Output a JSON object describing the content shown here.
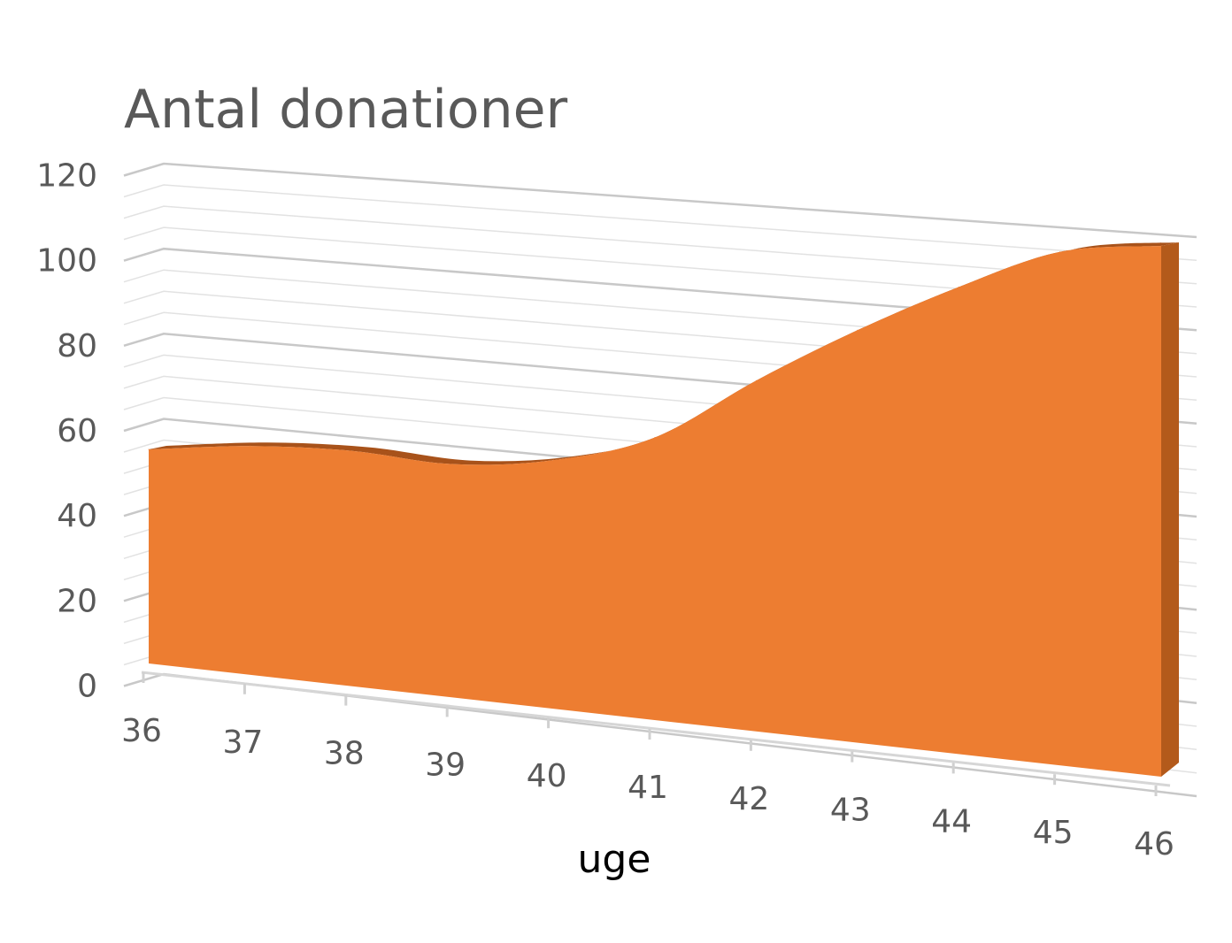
{
  "chart_data": {
    "type": "area",
    "title": "Antal donationer",
    "xlabel": "uge",
    "ylabel": "",
    "categories": [
      "36",
      "37",
      "38",
      "39",
      "40",
      "41",
      "42",
      "43",
      "44",
      "45",
      "46"
    ],
    "series": [
      {
        "values": [
          54,
          56,
          56,
          54,
          56,
          62,
          75,
          86,
          95,
          102,
          103
        ]
      }
    ],
    "ylim": [
      0,
      120
    ],
    "yticks": [
      "0",
      "20",
      "40",
      "60",
      "80",
      "100",
      "120"
    ],
    "grid": true,
    "minor_grid": true,
    "legend": "none",
    "colors": {
      "area_front": "#ED7D31",
      "area_side": "#B35A1B",
      "area_top": "#A8521A"
    }
  }
}
